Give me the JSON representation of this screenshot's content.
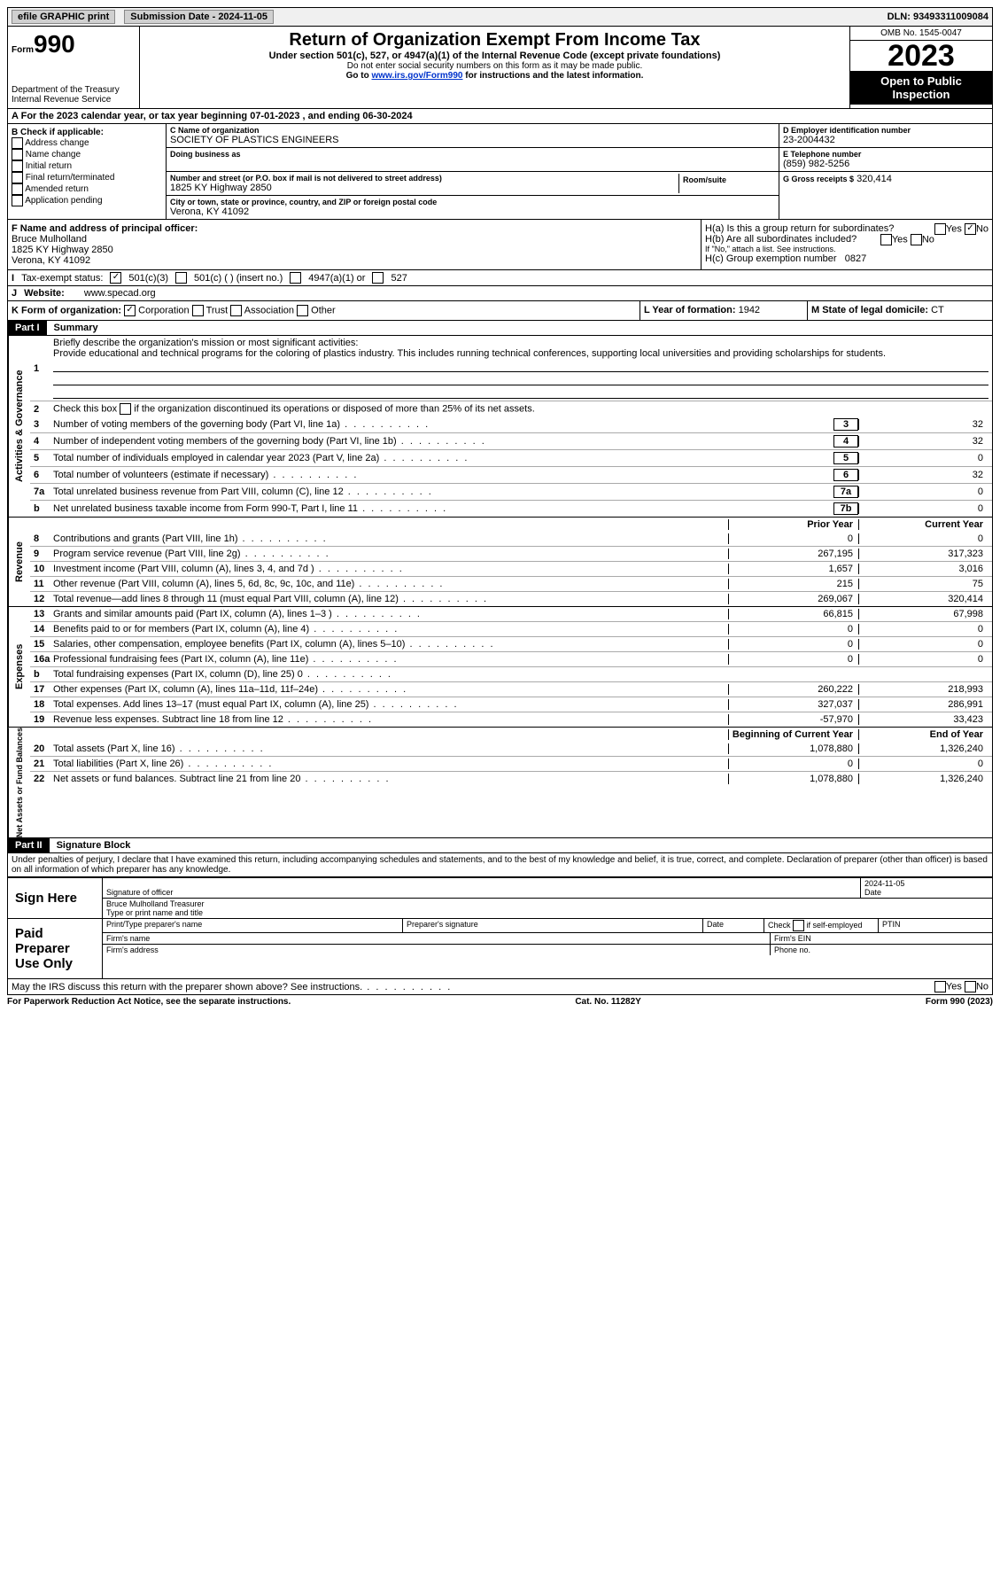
{
  "topbar": {
    "efile": "efile GRAPHIC print",
    "submission": "Submission Date - 2024-11-05",
    "dln": "DLN: 93493311009084"
  },
  "header": {
    "form_label": "Form",
    "form_num": "990",
    "dept": "Department of the Treasury Internal Revenue Service",
    "title": "Return of Organization Exempt From Income Tax",
    "subtitle": "Under section 501(c), 527, or 4947(a)(1) of the Internal Revenue Code (except private foundations)",
    "ssn": "Do not enter social security numbers on this form as it may be made public.",
    "goto_pre": "Go to ",
    "goto_link": "www.irs.gov/Form990",
    "goto_post": " for instructions and the latest information.",
    "omb": "OMB No. 1545-0047",
    "year": "2023",
    "open": "Open to Public Inspection"
  },
  "periodA": "For the 2023 calendar year, or tax year beginning 07-01-2023   , and ending 06-30-2024",
  "boxB": {
    "title": "B Check if applicable:",
    "items": [
      "Address change",
      "Name change",
      "Initial return",
      "Final return/terminated",
      "Amended return",
      "Application pending"
    ]
  },
  "boxC": {
    "name_label": "C Name of organization",
    "name": "SOCIETY OF PLASTICS ENGINEERS",
    "dba_label": "Doing business as",
    "addr_label": "Number and street (or P.O. box if mail is not delivered to street address)",
    "addr": "1825 KY Highway 2850",
    "suite_label": "Room/suite",
    "city_label": "City or town, state or province, country, and ZIP or foreign postal code",
    "city": "Verona, KY  41092"
  },
  "boxD": {
    "label": "D Employer identification number",
    "ein": "23-2004432",
    "tel_label": "E Telephone number",
    "tel": "(859) 982-5256",
    "gross_label": "G Gross receipts $",
    "gross": "320,414"
  },
  "boxF": {
    "label": "F  Name and address of principal officer:",
    "name": "Bruce Mulholland",
    "addr1": "1825 KY Highway 2850",
    "addr2": "Verona, KY  41092"
  },
  "boxH": {
    "a": "H(a)  Is this a group return for subordinates?",
    "b": "H(b)  Are all subordinates included?",
    "b_note": "If \"No,\" attach a list. See instructions.",
    "c_label": "H(c)  Group exemption number",
    "c_val": "0827",
    "yes": "Yes",
    "no": "No"
  },
  "boxI": {
    "label": "Tax-exempt status:",
    "c3": "501(c)(3)",
    "c_insert": "501(c) (  ) (insert no.)",
    "a1": "4947(a)(1) or",
    "s527": "527"
  },
  "boxJ": {
    "label": "Website:",
    "val": "www.specad.org"
  },
  "boxK": {
    "label": "K Form of organization:",
    "corp": "Corporation",
    "trust": "Trust",
    "assoc": "Association",
    "other": "Other"
  },
  "boxL": {
    "label": "L Year of formation:",
    "val": "1942"
  },
  "boxM": {
    "label": "M State of legal domicile:",
    "val": "CT"
  },
  "part1": {
    "tag": "Part I",
    "title": "Summary"
  },
  "summary": {
    "gov_label": "Activities & Governance",
    "rev_label": "Revenue",
    "exp_label": "Expenses",
    "net_label": "Net Assets or Fund Balances",
    "line1_label": "Briefly describe the organization's mission or most significant activities:",
    "line1_text": "Provide educational and technical programs for the coloring of plastics industry. This includes running technical conferences, supporting local universities and providing scholarships for students.",
    "line2": "Check this box      if the organization discontinued its operations or disposed of more than 25% of its net assets.",
    "prior": "Prior Year",
    "current": "Current Year",
    "begin": "Beginning of Current Year",
    "end": "End of Year",
    "rows_gov": [
      {
        "n": "3",
        "t": "Number of voting members of the governing body (Part VI, line 1a)",
        "box": "3",
        "v": "32"
      },
      {
        "n": "4",
        "t": "Number of independent voting members of the governing body (Part VI, line 1b)",
        "box": "4",
        "v": "32"
      },
      {
        "n": "5",
        "t": "Total number of individuals employed in calendar year 2023 (Part V, line 2a)",
        "box": "5",
        "v": "0"
      },
      {
        "n": "6",
        "t": "Total number of volunteers (estimate if necessary)",
        "box": "6",
        "v": "32"
      },
      {
        "n": "7a",
        "t": "Total unrelated business revenue from Part VIII, column (C), line 12",
        "box": "7a",
        "v": "0"
      },
      {
        "n": "b",
        "t": "Net unrelated business taxable income from Form 990-T, Part I, line 11",
        "box": "7b",
        "v": "0"
      }
    ],
    "rows_rev": [
      {
        "n": "8",
        "t": "Contributions and grants (Part VIII, line 1h)",
        "p": "0",
        "c": "0"
      },
      {
        "n": "9",
        "t": "Program service revenue (Part VIII, line 2g)",
        "p": "267,195",
        "c": "317,323"
      },
      {
        "n": "10",
        "t": "Investment income (Part VIII, column (A), lines 3, 4, and 7d )",
        "p": "1,657",
        "c": "3,016"
      },
      {
        "n": "11",
        "t": "Other revenue (Part VIII, column (A), lines 5, 6d, 8c, 9c, 10c, and 11e)",
        "p": "215",
        "c": "75"
      },
      {
        "n": "12",
        "t": "Total revenue—add lines 8 through 11 (must equal Part VIII, column (A), line 12)",
        "p": "269,067",
        "c": "320,414"
      }
    ],
    "rows_exp": [
      {
        "n": "13",
        "t": "Grants and similar amounts paid (Part IX, column (A), lines 1–3 )",
        "p": "66,815",
        "c": "67,998"
      },
      {
        "n": "14",
        "t": "Benefits paid to or for members (Part IX, column (A), line 4)",
        "p": "0",
        "c": "0"
      },
      {
        "n": "15",
        "t": "Salaries, other compensation, employee benefits (Part IX, column (A), lines 5–10)",
        "p": "0",
        "c": "0"
      },
      {
        "n": "16a",
        "t": "Professional fundraising fees (Part IX, column (A), line 11e)",
        "p": "0",
        "c": "0"
      },
      {
        "n": "b",
        "t": "Total fundraising expenses (Part IX, column (D), line 25) 0",
        "p": "",
        "c": "",
        "gray": true
      },
      {
        "n": "17",
        "t": "Other expenses (Part IX, column (A), lines 11a–11d, 11f–24e)",
        "p": "260,222",
        "c": "218,993"
      },
      {
        "n": "18",
        "t": "Total expenses. Add lines 13–17 (must equal Part IX, column (A), line 25)",
        "p": "327,037",
        "c": "286,991"
      },
      {
        "n": "19",
        "t": "Revenue less expenses. Subtract line 18 from line 12",
        "p": "-57,970",
        "c": "33,423"
      }
    ],
    "rows_net": [
      {
        "n": "20",
        "t": "Total assets (Part X, line 16)",
        "p": "1,078,880",
        "c": "1,326,240"
      },
      {
        "n": "21",
        "t": "Total liabilities (Part X, line 26)",
        "p": "0",
        "c": "0"
      },
      {
        "n": "22",
        "t": "Net assets or fund balances. Subtract line 21 from line 20",
        "p": "1,078,880",
        "c": "1,326,240"
      }
    ]
  },
  "part2": {
    "tag": "Part II",
    "title": "Signature Block"
  },
  "perjury": "Under penalties of perjury, I declare that I have examined this return, including accompanying schedules and statements, and to the best of my knowledge and belief, it is true, correct, and complete. Declaration of preparer (other than officer) is based on all information of which preparer has any knowledge.",
  "sign": {
    "here": "Sign Here",
    "sig_officer": "Signature of officer",
    "officer_name": "Bruce Mulholland  Treasurer",
    "type_title": "Type or print name and title",
    "date": "Date",
    "date_val": "2024-11-05",
    "paid": "Paid Preparer Use Only",
    "prep_name": "Print/Type preparer's name",
    "prep_sig": "Preparer's signature",
    "check_self": "Check       if self-employed",
    "ptin": "PTIN",
    "firm_name": "Firm's name",
    "firm_ein": "Firm's EIN",
    "firm_addr": "Firm's address",
    "phone": "Phone no."
  },
  "discuss": "May the IRS discuss this return with the preparer shown above? See instructions.",
  "footer": {
    "pra": "For Paperwork Reduction Act Notice, see the separate instructions.",
    "cat": "Cat. No. 11282Y",
    "form": "Form 990 (2023)"
  }
}
